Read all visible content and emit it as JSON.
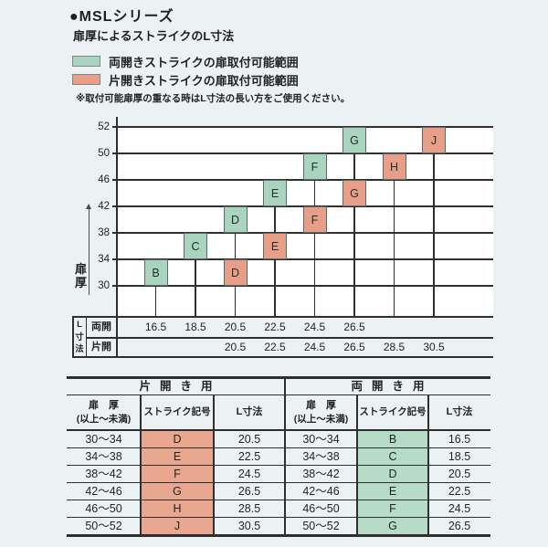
{
  "page_title": "●MSLシリーズ",
  "chart_heading": "扉厚によるストライクのL寸法",
  "legend": {
    "items": [
      {
        "label": "両開きストライクの扉取付可能範囲",
        "color": "#a9d4bf"
      },
      {
        "label": "片開きストライクの扉取付可能範囲",
        "color": "#e79f87"
      }
    ],
    "note": "※取付可能扉厚の重なる時はL寸法の長い方をご使用ください。"
  },
  "chart_data": {
    "type": "range-bar",
    "title": "扉厚によるストライクのL寸法",
    "y_axis": {
      "label": "扉厚",
      "boundaries": [
        30,
        34,
        38,
        42,
        46,
        50,
        52
      ]
    },
    "x_axis": {
      "label": "L寸法",
      "rows": [
        {
          "name": "両開",
          "values": [
            "16.5",
            "18.5",
            "20.5",
            "22.5",
            "24.5",
            "26.5",
            "",
            ""
          ]
        },
        {
          "name": "片開",
          "values": [
            "",
            "",
            "20.5",
            "22.5",
            "24.5",
            "26.5",
            "28.5",
            "30.5"
          ]
        }
      ]
    },
    "series": [
      {
        "name": "両開きストライクの扉取付可能範囲",
        "color": "#a9d4bf",
        "boxes": [
          {
            "symbol": "B",
            "door_min": 30,
            "door_max": 34,
            "L": 16.5,
            "column": 0
          },
          {
            "symbol": "C",
            "door_min": 34,
            "door_max": 38,
            "L": 18.5,
            "column": 1
          },
          {
            "symbol": "D",
            "door_min": 38,
            "door_max": 42,
            "L": 20.5,
            "column": 2
          },
          {
            "symbol": "E",
            "door_min": 42,
            "door_max": 46,
            "L": 22.5,
            "column": 3
          },
          {
            "symbol": "F",
            "door_min": 46,
            "door_max": 50,
            "L": 24.5,
            "column": 4
          },
          {
            "symbol": "G",
            "door_min": 50,
            "door_max": 52,
            "L": 26.5,
            "column": 5
          }
        ]
      },
      {
        "name": "片開きストライクの扉取付可能範囲",
        "color": "#e79f87",
        "boxes": [
          {
            "symbol": "D",
            "door_min": 30,
            "door_max": 34,
            "L": 20.5,
            "column": 2
          },
          {
            "symbol": "E",
            "door_min": 34,
            "door_max": 38,
            "L": 22.5,
            "column": 3
          },
          {
            "symbol": "F",
            "door_min": 38,
            "door_max": 42,
            "L": 24.5,
            "column": 4
          },
          {
            "symbol": "G",
            "door_min": 42,
            "door_max": 46,
            "L": 26.5,
            "column": 5
          },
          {
            "symbol": "H",
            "door_min": 46,
            "door_max": 50,
            "L": 28.5,
            "column": 6
          },
          {
            "symbol": "J",
            "door_min": 50,
            "door_max": 52,
            "L": 30.5,
            "column": 7
          }
        ]
      }
    ]
  },
  "lookup_tables": {
    "column_headers": {
      "door": "扉　厚",
      "door_sub": "(以上～未満)",
      "symbol": "ストライク記号",
      "l": "L寸法"
    },
    "tables": [
      {
        "title": "片開き用",
        "symbol_color": "#e9a78f",
        "rows": [
          [
            "30～34",
            "D",
            "20.5"
          ],
          [
            "34～38",
            "E",
            "22.5"
          ],
          [
            "38～42",
            "F",
            "24.5"
          ],
          [
            "42～46",
            "G",
            "26.5"
          ],
          [
            "46～50",
            "H",
            "28.5"
          ],
          [
            "50～52",
            "J",
            "30.5"
          ]
        ]
      },
      {
        "title": "両開き用",
        "symbol_color": "#b6dbc6",
        "rows": [
          [
            "30～34",
            "B",
            "16.5"
          ],
          [
            "34～38",
            "C",
            "18.5"
          ],
          [
            "38～42",
            "D",
            "20.5"
          ],
          [
            "42～46",
            "E",
            "22.5"
          ],
          [
            "46～50",
            "F",
            "24.5"
          ],
          [
            "50～52",
            "G",
            "26.5"
          ]
        ]
      }
    ]
  },
  "colors": {
    "background": "#ecf2f3",
    "plot_background": "#ffffff",
    "line": "#2f2f2f",
    "text": "#222222"
  }
}
